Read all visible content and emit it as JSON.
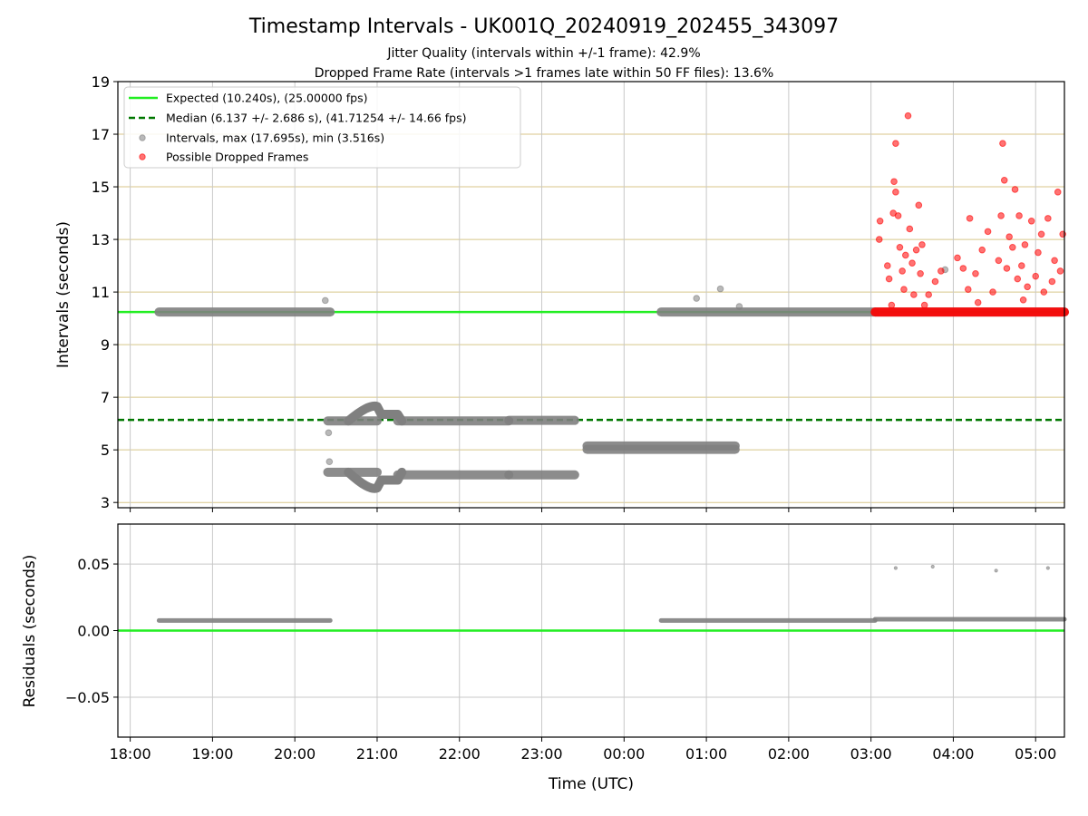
{
  "chart_data": [
    {
      "type": "scatter",
      "title": "Timestamp Intervals - UK001Q_20240919_202455_343097",
      "subtitle_lines": [
        "Jitter Quality (intervals within +/-1 frame): 42.9%",
        "Dropped Frame Rate (intervals >1 frames late within 50 FF files): 13.6%"
      ],
      "xlabel": "",
      "ylabel": "Intervals (seconds)",
      "ylim": [
        2.8,
        19
      ],
      "yticks": [
        "3",
        "5",
        "7",
        "9",
        "11",
        "13",
        "15",
        "17",
        "19"
      ],
      "ytick_values": [
        3,
        5,
        7,
        9,
        11,
        13,
        15,
        17,
        19
      ],
      "x_unit": "hours since 18:00 UTC",
      "xlim": [
        -0.15,
        11.35
      ],
      "grid": true,
      "legend_placement": "top-left",
      "legend": [
        "Expected (10.240s), (25.00000 fps)",
        "Median (6.137 +/- 2.686 s), (41.71254 +/- 14.66 fps)",
        "Intervals, max (17.695s), min (3.516s)",
        "Possible Dropped Frames"
      ],
      "reference_lines": [
        {
          "name": "Expected",
          "y": 10.24,
          "color": "#22ee22",
          "style": "solid"
        },
        {
          "name": "Median",
          "y": 6.137,
          "color": "#007700",
          "style": "dashed"
        }
      ],
      "series": [
        {
          "name": "Intervals",
          "color": "#808080",
          "segments": [
            {
              "x": [
                0.35,
                2.43
              ],
              "y": [
                10.24,
                10.24
              ]
            },
            {
              "x": [
                2.4,
                3.0
              ],
              "y": [
                6.1,
                6.1
              ]
            },
            {
              "x": [
                2.4,
                3.0
              ],
              "y": [
                4.15,
                4.15
              ]
            },
            {
              "x": [
                3.25,
                4.6
              ],
              "y": [
                6.1,
                6.1
              ]
            },
            {
              "x": [
                3.25,
                4.6
              ],
              "y": [
                4.05,
                4.05
              ]
            },
            {
              "x": [
                4.6,
                5.4
              ],
              "y": [
                6.12,
                6.12
              ]
            },
            {
              "x": [
                4.6,
                5.4
              ],
              "y": [
                4.05,
                4.05
              ]
            },
            {
              "x": [
                5.55,
                7.35
              ],
              "y": [
                5.15,
                5.15
              ]
            },
            {
              "x": [
                5.55,
                7.35
              ],
              "y": [
                5.02,
                5.02
              ]
            },
            {
              "x": [
                6.45,
                9.05
              ],
              "y": [
                10.24,
                10.24
              ]
            },
            {
              "x": [
                9.05,
                11.35
              ],
              "y": [
                10.24,
                10.24
              ]
            }
          ],
          "points": [
            {
              "x": 2.37,
              "y": 10.68
            },
            {
              "x": 2.41,
              "y": 5.65
            },
            {
              "x": 2.42,
              "y": 4.55
            },
            {
              "x": 6.88,
              "y": 10.76
            },
            {
              "x": 7.17,
              "y": 11.12
            },
            {
              "x": 7.4,
              "y": 10.45
            },
            {
              "x": 9.9,
              "y": 11.85
            }
          ],
          "wave_upper": {
            "x": [
              3.0,
              3.25
            ],
            "y_start": 6.1,
            "y_peak": 6.65,
            "x_peak": 2.9,
            "y_after": 6.35
          },
          "wave_lower": {
            "x": [
              3.0,
              3.25
            ],
            "y_start": 4.15,
            "y_trough": 3.55,
            "x_trough": 2.92,
            "y_after": 3.85
          }
        },
        {
          "name": "Possible Dropped Frames",
          "color": "#ff0000",
          "segments": [
            {
              "x": [
                9.05,
                11.35
              ],
              "y": [
                10.24,
                10.24
              ]
            }
          ],
          "points": [
            {
              "x": 9.1,
              "y": 13.0
            },
            {
              "x": 9.11,
              "y": 13.7
            },
            {
              "x": 9.2,
              "y": 12.0
            },
            {
              "x": 9.22,
              "y": 11.5
            },
            {
              "x": 9.27,
              "y": 14.0
            },
            {
              "x": 9.28,
              "y": 15.2
            },
            {
              "x": 9.3,
              "y": 14.8
            },
            {
              "x": 9.3,
              "y": 16.65
            },
            {
              "x": 9.33,
              "y": 13.9
            },
            {
              "x": 9.35,
              "y": 12.7
            },
            {
              "x": 9.38,
              "y": 11.8
            },
            {
              "x": 9.4,
              "y": 11.1
            },
            {
              "x": 9.42,
              "y": 12.4
            },
            {
              "x": 9.45,
              "y": 17.7
            },
            {
              "x": 9.47,
              "y": 13.4
            },
            {
              "x": 9.5,
              "y": 12.1
            },
            {
              "x": 9.52,
              "y": 10.9
            },
            {
              "x": 9.55,
              "y": 12.6
            },
            {
              "x": 9.58,
              "y": 14.3
            },
            {
              "x": 9.6,
              "y": 11.7
            },
            {
              "x": 9.62,
              "y": 12.8
            },
            {
              "x": 9.7,
              "y": 10.9
            },
            {
              "x": 9.78,
              "y": 11.4
            },
            {
              "x": 9.85,
              "y": 11.8
            },
            {
              "x": 10.05,
              "y": 12.3
            },
            {
              "x": 10.12,
              "y": 11.9
            },
            {
              "x": 10.18,
              "y": 11.1
            },
            {
              "x": 10.2,
              "y": 13.8
            },
            {
              "x": 10.27,
              "y": 11.7
            },
            {
              "x": 10.35,
              "y": 12.6
            },
            {
              "x": 10.42,
              "y": 13.3
            },
            {
              "x": 10.48,
              "y": 11.0
            },
            {
              "x": 10.55,
              "y": 12.2
            },
            {
              "x": 10.58,
              "y": 13.9
            },
            {
              "x": 10.6,
              "y": 16.65
            },
            {
              "x": 10.62,
              "y": 15.25
            },
            {
              "x": 10.65,
              "y": 11.9
            },
            {
              "x": 10.68,
              "y": 13.1
            },
            {
              "x": 10.72,
              "y": 12.7
            },
            {
              "x": 10.75,
              "y": 14.9
            },
            {
              "x": 10.78,
              "y": 11.5
            },
            {
              "x": 10.8,
              "y": 13.9
            },
            {
              "x": 10.83,
              "y": 12.0
            },
            {
              "x": 10.87,
              "y": 12.8
            },
            {
              "x": 10.9,
              "y": 11.2
            },
            {
              "x": 10.95,
              "y": 13.7
            },
            {
              "x": 11.0,
              "y": 11.6
            },
            {
              "x": 11.03,
              "y": 12.5
            },
            {
              "x": 11.07,
              "y": 13.2
            },
            {
              "x": 11.1,
              "y": 11.0
            },
            {
              "x": 11.15,
              "y": 13.8
            },
            {
              "x": 11.2,
              "y": 11.4
            },
            {
              "x": 11.23,
              "y": 12.2
            },
            {
              "x": 11.27,
              "y": 14.8
            },
            {
              "x": 11.3,
              "y": 11.8
            },
            {
              "x": 11.33,
              "y": 13.2
            },
            {
              "x": 9.25,
              "y": 10.5
            },
            {
              "x": 9.65,
              "y": 10.5
            },
            {
              "x": 10.3,
              "y": 10.6
            },
            {
              "x": 10.85,
              "y": 10.7
            }
          ]
        }
      ]
    },
    {
      "type": "scatter",
      "xlabel": "Time (UTC)",
      "ylabel": "Residuals (seconds)",
      "ylim": [
        -0.08,
        0.08
      ],
      "yticks": [
        "−0.05",
        "0.00",
        "0.05"
      ],
      "ytick_values": [
        -0.05,
        0.0,
        0.05
      ],
      "x_unit": "hours since 18:00 UTC",
      "xlim": [
        -0.15,
        11.35
      ],
      "xticks": [
        "18:00",
        "19:00",
        "20:00",
        "21:00",
        "22:00",
        "23:00",
        "00:00",
        "01:00",
        "02:00",
        "03:00",
        "04:00",
        "05:00"
      ],
      "xtick_values": [
        0,
        1,
        2,
        3,
        4,
        5,
        6,
        7,
        8,
        9,
        10,
        11
      ],
      "grid": true,
      "reference_lines": [
        {
          "name": "Zero",
          "y": 0.0,
          "color": "#22ee22",
          "style": "solid"
        }
      ],
      "series": [
        {
          "name": "Residuals",
          "color": "#808080",
          "segments": [
            {
              "x": [
                0.35,
                2.43
              ],
              "y": [
                0.0076,
                0.0076
              ]
            },
            {
              "x": [
                6.45,
                9.05
              ],
              "y": [
                0.0076,
                0.0076
              ]
            },
            {
              "x": [
                9.05,
                11.35
              ],
              "y": [
                0.0085,
                0.0085
              ]
            }
          ],
          "points": [
            {
              "x": 9.3,
              "y": 0.047
            },
            {
              "x": 9.75,
              "y": 0.048
            },
            {
              "x": 10.52,
              "y": 0.045
            },
            {
              "x": 11.15,
              "y": 0.047
            }
          ]
        }
      ]
    }
  ]
}
